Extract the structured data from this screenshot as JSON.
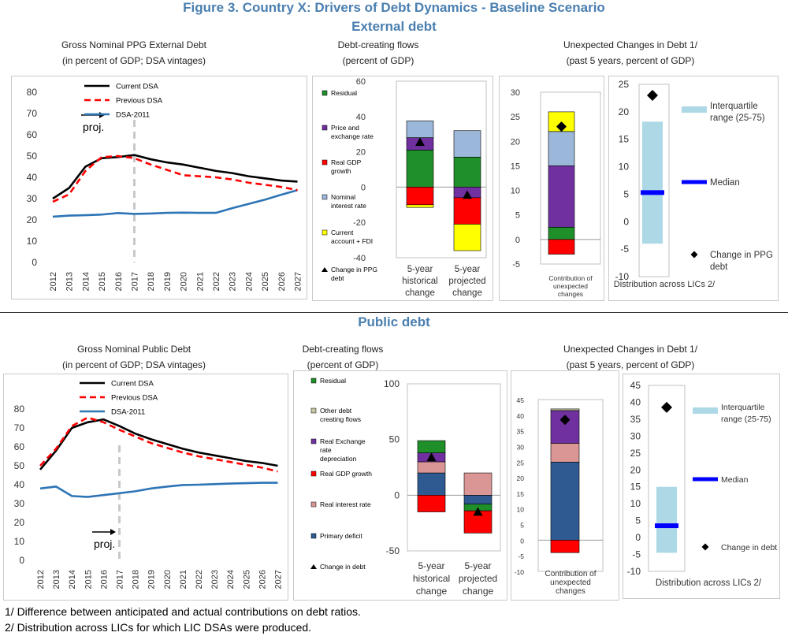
{
  "figure_title": "Figure 3. Country X: Drivers of Debt Dynamics - Baseline Scenario",
  "section_external": "External debt",
  "section_public": "Public debt",
  "footnotes": [
    "1/ Difference between anticipated and actual contributions on debt ratios.",
    "2/ Distribution across LICs for which LIC DSAs were produced."
  ],
  "captions": {
    "ext_line": [
      "Gross Nominal PPG External Debt",
      "(in percent of GDP; DSA vintages)"
    ],
    "ext_flows": [
      "Debt-creating flows",
      "(percent of GDP)"
    ],
    "ext_unexp": [
      "Unexpected Changes in Debt 1/",
      "(past 5 years, percent of GDP)"
    ],
    "pub_line": [
      "Gross Nominal Public Debt",
      "(in percent of GDP; DSA vintages)"
    ],
    "pub_flows": [
      "Debt-creating flows",
      "(percent of GDP)"
    ],
    "pub_unexp": [
      "Unexpected Changes in Debt 1/",
      "(past 5 years, percent of GDP)"
    ]
  },
  "colors": {
    "current": "#000000",
    "previous": "#ff0000",
    "dsa2011": "#2e75b6",
    "residual": "#1f8f2a",
    "price": "#7030a0",
    "gdp": "#ff0000",
    "interest": "#9bb7da",
    "current_account": "#ffff00",
    "other": "#c6c6a0",
    "realint": "#d99694",
    "primary": "#2f5a91",
    "iqr": "#add8e6",
    "median": "#0000ff"
  },
  "chart_data": [
    {
      "id": "ext_line",
      "type": "line",
      "x": [
        "2012",
        "2013",
        "2014",
        "2015",
        "2016",
        "2017",
        "2018",
        "2019",
        "2020",
        "2021",
        "2022",
        "2023",
        "2024",
        "2025",
        "2026",
        "2027"
      ],
      "ylim": [
        0,
        80
      ],
      "yticks": [
        "0",
        "10",
        "20",
        "30",
        "40",
        "50",
        "60",
        "70",
        "80"
      ],
      "series": [
        {
          "name": "Current DSA",
          "style": "solid",
          "color": "#000000",
          "values": [
            30,
            35,
            45,
            49,
            49.5,
            50.5,
            48.5,
            47,
            46,
            44.5,
            43,
            42,
            40.5,
            39.5,
            38.5,
            38
          ]
        },
        {
          "name": "Previous DSA",
          "style": "dashed",
          "color": "#ff0000",
          "values": [
            28.5,
            32,
            43,
            49.5,
            50,
            49,
            46,
            43.5,
            41,
            40.5,
            40,
            39,
            37.5,
            36.5,
            35.5,
            34
          ]
        },
        {
          "name": "DSA-2011",
          "style": "solid",
          "color": "#2e75b6",
          "values": [
            21.5,
            22,
            22.2,
            22.5,
            23.2,
            22.8,
            23,
            23.3,
            23.4,
            23.3,
            23.3,
            25.5,
            27.5,
            29.5,
            31.8,
            34
          ]
        }
      ],
      "projection_label": "proj.",
      "projection_x": "2017"
    },
    {
      "id": "ext_flows",
      "type": "bar",
      "stacked": true,
      "ylim": [
        -40,
        60
      ],
      "yticks": [
        "-40",
        "-20",
        "0",
        "20",
        "40",
        "60"
      ],
      "categories": [
        "5-year historical change",
        "5-year projected change"
      ],
      "legend": [
        "Residual",
        "Price and exchange rate",
        "Real GDP growth",
        "Nominal interest rate",
        "Current account + FDI",
        "Change in PPG debt"
      ],
      "series": [
        {
          "name": "Residual",
          "color": "#1f8f2a",
          "values": [
            21,
            17
          ]
        },
        {
          "name": "Price and exchange rate",
          "color": "#7030a0",
          "values": [
            7,
            -6
          ]
        },
        {
          "name": "Real GDP growth",
          "color": "#ff0000",
          "values": [
            -10,
            -15
          ]
        },
        {
          "name": "Nominal interest rate",
          "color": "#9bb7da",
          "values": [
            9.5,
            15
          ]
        },
        {
          "name": "Current account + FDI",
          "color": "#ffff00",
          "values": [
            -1.5,
            -15
          ]
        }
      ],
      "markers": [
        {
          "name": "Change in PPG debt",
          "values": [
            25.5,
            -4.5
          ]
        }
      ]
    },
    {
      "id": "ext_contrib",
      "type": "bar",
      "stacked": true,
      "ylim": [
        -5,
        30
      ],
      "yticks": [
        "-5",
        "0",
        "5",
        "10",
        "15",
        "20",
        "25",
        "30"
      ],
      "categories": [
        "Contribution of unexpected changes"
      ],
      "series": [
        {
          "name": "Residual",
          "values": [
            2.5
          ]
        },
        {
          "name": "Price and exchange rate",
          "values": [
            12.5
          ]
        },
        {
          "name": "Nominal interest rate",
          "values": [
            7
          ]
        },
        {
          "name": "Current account + FDI",
          "values": [
            4
          ]
        },
        {
          "name": "Real GDP growth",
          "values": [
            -3
          ]
        }
      ],
      "markers": [
        {
          "name": "Change in PPG debt",
          "values": [
            23
          ]
        }
      ]
    },
    {
      "id": "ext_dist",
      "type": "bar",
      "ylim": [
        -10,
        25
      ],
      "yticks": [
        "-10",
        "-5",
        "0",
        "5",
        "10",
        "15",
        "20",
        "25"
      ],
      "categories": [
        "Distribution across LICs 2/"
      ],
      "iqr": [
        -4,
        18.2
      ],
      "median": 5.3,
      "point": 23,
      "legend": [
        "Interquartile range (25-75)",
        "Median",
        "Change in PPG debt"
      ]
    },
    {
      "id": "pub_line",
      "type": "line",
      "x": [
        "2012",
        "2013",
        "2014",
        "2015",
        "2016",
        "2017",
        "2018",
        "2019",
        "2020",
        "2021",
        "2022",
        "2023",
        "2024",
        "2025",
        "2026",
        "2027"
      ],
      "ylim": [
        0,
        80
      ],
      "yticks": [
        "0",
        "10",
        "20",
        "30",
        "40",
        "50",
        "60",
        "70",
        "80"
      ],
      "series": [
        {
          "name": "Current DSA",
          "style": "solid",
          "color": "#000000",
          "values": [
            48,
            58,
            70,
            73,
            74.5,
            71,
            67,
            64,
            61.5,
            59,
            57,
            55.5,
            54,
            52.5,
            51.5,
            50
          ]
        },
        {
          "name": "Previous DSA",
          "style": "dashed",
          "color": "#ff0000",
          "values": [
            50,
            59,
            71,
            75.5,
            73,
            69,
            65.5,
            62,
            59.5,
            57,
            55,
            53.5,
            52,
            50.5,
            49,
            47
          ]
        },
        {
          "name": "DSA-2011",
          "style": "solid",
          "color": "#2e75b6",
          "values": [
            38,
            39,
            34,
            33.5,
            34.5,
            35.5,
            36.5,
            38,
            39,
            39.8,
            40,
            40.3,
            40.6,
            40.8,
            41,
            41
          ]
        }
      ],
      "projection_label": "proj.",
      "projection_x": "2017"
    },
    {
      "id": "pub_flows",
      "type": "bar",
      "stacked": true,
      "ylim": [
        -50,
        100
      ],
      "yticks": [
        "-50",
        "0",
        "50",
        "100"
      ],
      "categories": [
        "5-year historical change",
        "5-year projected change"
      ],
      "legend": [
        "Residual",
        "Other debt creating flows",
        "Real Exchange rate depreciation",
        "Real GDP growth",
        "Real interest rate",
        "Primary deficit",
        "Change in debt"
      ],
      "series": [
        {
          "name": "Primary deficit",
          "color": "#2f5a91",
          "values": [
            20,
            -8
          ]
        },
        {
          "name": "Real interest rate",
          "color": "#d99694",
          "values": [
            10,
            20
          ]
        },
        {
          "name": "Real Exchange rate depreciation",
          "color": "#7030a0",
          "values": [
            8,
            0
          ]
        },
        {
          "name": "Residual",
          "color": "#1f8f2a",
          "values": [
            11,
            -6
          ]
        },
        {
          "name": "Real GDP growth",
          "color": "#ff0000",
          "values": [
            -15,
            -20
          ]
        }
      ],
      "markers": [
        {
          "name": "Change in debt",
          "values": [
            34,
            -15
          ]
        }
      ]
    },
    {
      "id": "pub_contrib",
      "type": "bar",
      "stacked": true,
      "ylim": [
        -10,
        45
      ],
      "yticks": [
        "-10",
        "-5",
        "0",
        "5",
        "10",
        "15",
        "20",
        "25",
        "30",
        "35",
        "40",
        "45"
      ],
      "categories": [
        "Contribution of unexpected changes"
      ],
      "series": [
        {
          "name": "Primary deficit",
          "values": [
            25
          ]
        },
        {
          "name": "Real interest rate",
          "values": [
            6
          ]
        },
        {
          "name": "Real Exchange rate depreciation",
          "values": [
            10.5
          ]
        },
        {
          "name": "Other debt creating flows",
          "values": [
            0.5
          ]
        },
        {
          "name": "Real GDP growth",
          "values": [
            -4
          ]
        }
      ],
      "markers": [
        {
          "name": "Change in debt",
          "values": [
            38.5
          ]
        }
      ]
    },
    {
      "id": "pub_dist",
      "type": "bar",
      "ylim": [
        -10,
        45
      ],
      "yticks": [
        "-10",
        "-5",
        "0",
        "5",
        "10",
        "15",
        "20",
        "25",
        "30",
        "35",
        "40",
        "45"
      ],
      "categories": [
        "Distribution across LICs 2/"
      ],
      "iqr": [
        -4.5,
        15
      ],
      "median": 3.5,
      "point": 38.5,
      "legend": [
        "Interquartile range (25-75)",
        "Median",
        "Change in debt"
      ]
    }
  ]
}
